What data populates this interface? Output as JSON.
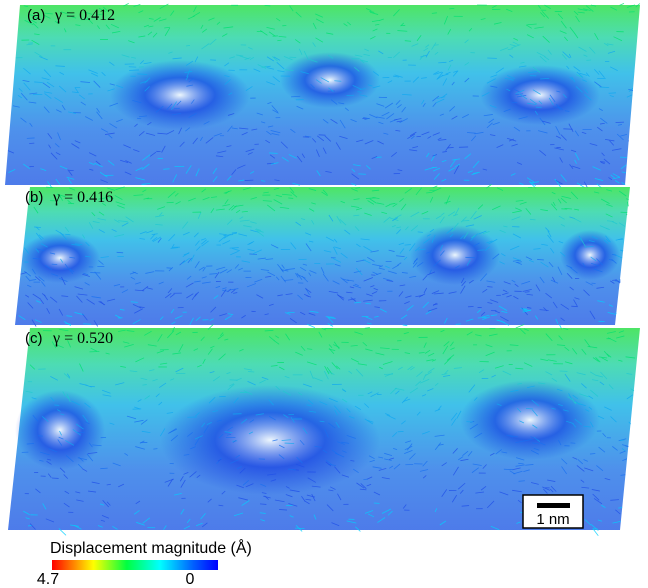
{
  "panels": [
    {
      "label": "(a)",
      "gamma": "γ = 0.412"
    },
    {
      "label": "(b)",
      "gamma": "γ = 0.416"
    },
    {
      "label": "(c)",
      "gamma": "γ = 0.520"
    }
  ],
  "colorbar": {
    "title": "Displacement magnitude (Å)",
    "max": 4.7,
    "min": 0
  },
  "scale_bar": "1 nm"
}
